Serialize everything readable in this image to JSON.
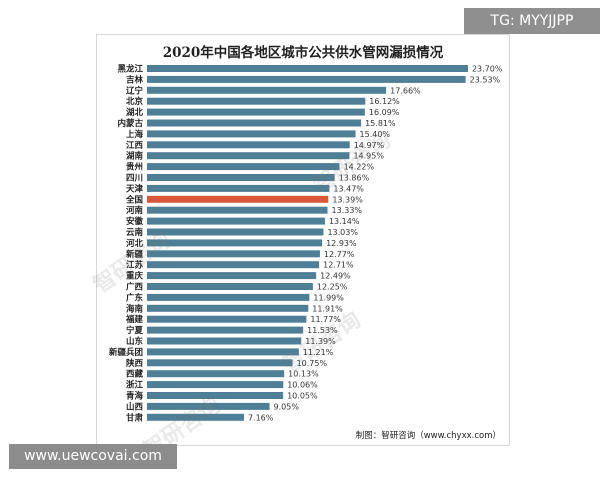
{
  "badges": {
    "top_right": "TG: MYYJJPP",
    "bottom_left": "www.uewcovai.com"
  },
  "watermark": "智研咨询",
  "chart_data": {
    "type": "bar",
    "orientation": "horizontal",
    "title": "2020年中国各地区城市公共供水管网漏损情况",
    "source": "制图：智研咨询（www.chyxx.com）",
    "value_suffix": "%",
    "xlim": [
      0,
      24
    ],
    "grid": false,
    "categories": [
      "黑龙江",
      "吉林",
      "辽宁",
      "北京",
      "湖北",
      "内蒙古",
      "上海",
      "江西",
      "湖南",
      "贵州",
      "四川",
      "天津",
      "全国",
      "河南",
      "安徽",
      "云南",
      "河北",
      "新疆",
      "江苏",
      "重庆",
      "广西",
      "广东",
      "海南",
      "福建",
      "宁夏",
      "山东",
      "新疆兵团",
      "陕西",
      "西藏",
      "浙江",
      "青海",
      "山西",
      "甘肃"
    ],
    "values": [
      23.7,
      23.53,
      17.66,
      16.12,
      16.09,
      15.81,
      15.4,
      14.97,
      14.95,
      14.22,
      13.86,
      13.47,
      13.39,
      13.33,
      13.14,
      13.03,
      12.93,
      12.77,
      12.71,
      12.49,
      12.25,
      11.99,
      11.91,
      11.77,
      11.53,
      11.39,
      11.21,
      10.75,
      10.13,
      10.06,
      10.05,
      9.05,
      7.16
    ],
    "value_labels": [
      "23.70%",
      "23.53%",
      "17.66%",
      "16.12%",
      "16.09%",
      "15.81%",
      "15.40%",
      "14.97%",
      "14.95%",
      "14.22%",
      "13.86%",
      "13.47%",
      "13.39%",
      "13.33%",
      "13.14%",
      "13.03%",
      "12.93%",
      "12.77%",
      "12.71%",
      "12.49%",
      "12.25%",
      "11.99%",
      "11.91%",
      "11.77%",
      "11.53%",
      "11.39%",
      "11.21%",
      "10.75%",
      "10.13%",
      "10.06%",
      "10.05%",
      "9.05%",
      "7.16%"
    ],
    "colors": {
      "bar": "#4f7f96",
      "highlight": "#d9573a",
      "highlight_category": "全国"
    }
  }
}
